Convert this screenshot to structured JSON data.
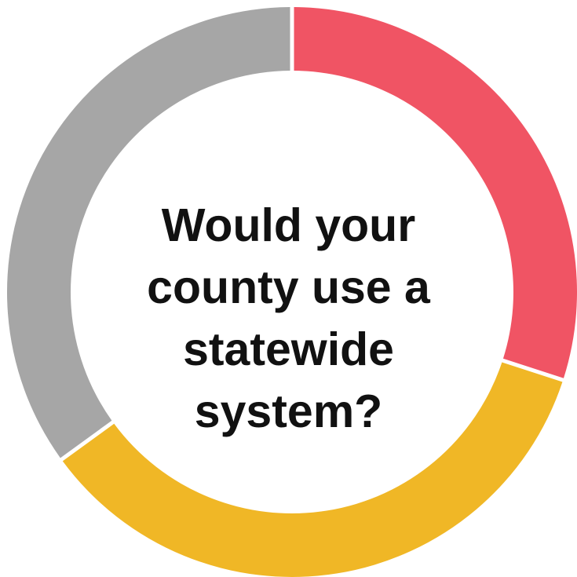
{
  "chart_data": {
    "type": "pie",
    "subtype": "donut",
    "title_lines": [
      "Would your",
      "county use a",
      "statewide",
      "system?"
    ],
    "categories": [
      "",
      "",
      ""
    ],
    "values": [
      30,
      35,
      35
    ],
    "colors": [
      "#f05464",
      "#f0b726",
      "#a6a6a6"
    ],
    "start_angle_deg": 0,
    "direction": "clockwise",
    "legend": "none",
    "data_labels": "none"
  }
}
